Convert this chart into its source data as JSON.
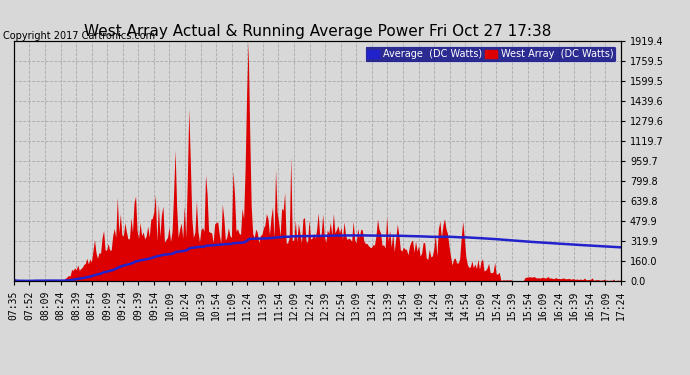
{
  "title": "West Array Actual & Running Average Power Fri Oct 27 17:38",
  "copyright": "Copyright 2017 Cartronics.com",
  "legend_avg": "Average  (DC Watts)",
  "legend_west": "West Array  (DC Watts)",
  "ylabel_right": [
    "1919.4",
    "1759.5",
    "1599.5",
    "1439.6",
    "1279.6",
    "1119.7",
    "959.7",
    "799.8",
    "639.8",
    "479.9",
    "319.9",
    "160.0",
    "0.0"
  ],
  "ytick_values": [
    1919.4,
    1759.5,
    1599.5,
    1439.6,
    1279.6,
    1119.7,
    959.7,
    799.8,
    639.8,
    479.9,
    319.9,
    160.0,
    0.0
  ],
  "ymax": 1919.4,
  "ymin": 0.0,
  "bg_color": "#d8d8d8",
  "plot_bg_color": "#d8d8d8",
  "grid_color": "#aaaaaa",
  "bar_color": "#dd0000",
  "avg_line_color": "#2222cc",
  "title_color": "#000000",
  "title_fontsize": 11,
  "copyright_fontsize": 7,
  "tick_fontsize": 7,
  "xtick_labels": [
    "07:35",
    "07:52",
    "08:09",
    "08:24",
    "08:39",
    "08:54",
    "09:09",
    "09:24",
    "09:39",
    "09:54",
    "10:09",
    "10:24",
    "10:39",
    "10:54",
    "11:09",
    "11:24",
    "11:39",
    "11:54",
    "12:09",
    "12:24",
    "12:39",
    "12:54",
    "13:09",
    "13:24",
    "13:39",
    "13:54",
    "14:09",
    "14:24",
    "14:39",
    "14:54",
    "15:09",
    "15:24",
    "15:39",
    "15:54",
    "16:09",
    "16:24",
    "16:39",
    "16:54",
    "17:09",
    "17:24"
  ],
  "n_points": 400
}
